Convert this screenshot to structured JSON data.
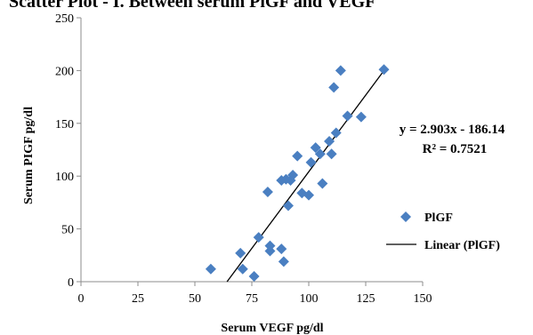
{
  "chart_data": {
    "type": "scatter",
    "title": "Scatter Plot - I. Between serum PlGF and VEGF",
    "xlabel": "Serum VEGF  pg/dl",
    "ylabel": "Serum PIGF  pg/dl",
    "xlim": [
      0,
      150
    ],
    "ylim": [
      0,
      250
    ],
    "xticks": [
      0,
      25,
      50,
      75,
      100,
      125,
      150
    ],
    "yticks": [
      0,
      50,
      100,
      150,
      200,
      250
    ],
    "grid": false,
    "legend": "right",
    "colors": {
      "marker": "#4a7fc1",
      "trendline": "#000000"
    },
    "series": [
      {
        "name": "PlGF",
        "points": [
          [
            57,
            12
          ],
          [
            71,
            12
          ],
          [
            76,
            5
          ],
          [
            70,
            27
          ],
          [
            78,
            42
          ],
          [
            83,
            29
          ],
          [
            83,
            34
          ],
          [
            88,
            31
          ],
          [
            89,
            19
          ],
          [
            82,
            85
          ],
          [
            88,
            96
          ],
          [
            90,
            97
          ],
          [
            91,
            72
          ],
          [
            92,
            96
          ],
          [
            93,
            101
          ],
          [
            95,
            119
          ],
          [
            97,
            84
          ],
          [
            100,
            82
          ],
          [
            101,
            113
          ],
          [
            103,
            127
          ],
          [
            105,
            121
          ],
          [
            106,
            93
          ],
          [
            109,
            133
          ],
          [
            110,
            121
          ],
          [
            112,
            141
          ],
          [
            111,
            184
          ],
          [
            114,
            200
          ],
          [
            117,
            157
          ],
          [
            123,
            156
          ],
          [
            133,
            201
          ]
        ]
      }
    ],
    "trendline": {
      "name": "Linear (PlGF)",
      "slope": 2.903,
      "intercept": -186.14,
      "x_range": [
        64.12,
        133.24
      ],
      "equation_label": "y = 2.903x - 186.14",
      "r2_label": "R² = 0.7521"
    }
  }
}
